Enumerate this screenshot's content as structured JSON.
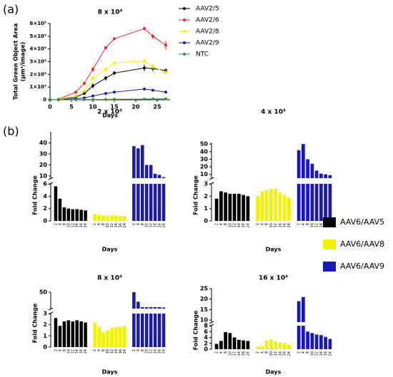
{
  "labels": [
    "(a)",
    "(b)"
  ],
  "chart_data": [
    {
      "type": "line",
      "title": "8 x 10⁴",
      "xlabel": "Days",
      "ylabel": [
        "Total Green Object Area",
        "(µm²/image)"
      ],
      "x": [
        0,
        2,
        6,
        8,
        10,
        13,
        15,
        22,
        24,
        27
      ],
      "xlim": [
        0,
        28
      ],
      "xticks": [
        0,
        5,
        10,
        15,
        20,
        25
      ],
      "ylim": [
        0,
        600000
      ],
      "yticks": [
        0,
        {
          "value": 100000,
          "label": "1×10⁵"
        },
        {
          "value": 200000,
          "label": "2×10⁵"
        },
        {
          "value": 300000,
          "label": "3×10⁵"
        },
        {
          "value": 400000,
          "label": "4×10⁵"
        },
        {
          "value": 500000,
          "label": "5×10⁵"
        },
        {
          "value": 600000,
          "label": "6×10⁵"
        }
      ],
      "series": [
        {
          "name": "AAV2/5",
          "color": "#000000",
          "values": [
            0,
            2000,
            20000,
            50000,
            110000,
            170000,
            210000,
            250000,
            245000,
            230000
          ],
          "errors": [
            0,
            1000,
            5000,
            10000,
            20000,
            20000,
            15000,
            25000,
            20000,
            15000
          ]
        },
        {
          "name": "AAV2/6",
          "color": "#e8262a",
          "values": [
            0,
            5000,
            60000,
            130000,
            240000,
            410000,
            480000,
            560000,
            500000,
            430000
          ],
          "errors": [
            0,
            1000,
            8000,
            10000,
            20000,
            10000,
            8000,
            15000,
            20000,
            35000
          ]
        },
        {
          "name": "AAV2/8",
          "color": "#f3f300",
          "values": [
            0,
            3000,
            30000,
            70000,
            170000,
            240000,
            290000,
            305000,
            260000,
            215000
          ],
          "errors": [
            0,
            1000,
            6000,
            10000,
            25000,
            20000,
            15000,
            30000,
            25000,
            20000
          ]
        },
        {
          "name": "AAV2/9",
          "color": "#1a1ab0",
          "values": [
            0,
            1000,
            8000,
            15000,
            30000,
            50000,
            60000,
            85000,
            75000,
            60000
          ],
          "errors": [
            0,
            500,
            2000,
            3000,
            4000,
            4000,
            4000,
            6000,
            5000,
            4000
          ]
        },
        {
          "name": "NTC",
          "color": "#2e9a2e",
          "values": [
            0,
            0,
            1000,
            2000,
            2000,
            3000,
            4000,
            5000,
            6000,
            8000
          ],
          "errors": [
            0,
            0,
            500,
            500,
            500,
            500,
            800,
            1000,
            1000,
            1500
          ]
        }
      ]
    },
    {
      "type": "broken_bar",
      "xlabel": "Days",
      "ylabel": "Fold Change",
      "categories": [
        "2",
        "4",
        "8",
        "10",
        "12",
        "14",
        "16",
        "24"
      ],
      "legend": [
        {
          "name": "AAV6/AAV5",
          "color": "#000000"
        },
        {
          "name": "AAV6/AAV8",
          "color": "#f3f300"
        },
        {
          "name": "AAV6/AAV9",
          "color": "#1a1ab0"
        }
      ],
      "panels": [
        {
          "title": "2 x 10⁴",
          "ylim": [
            0,
            6
          ],
          "yticks": [
            0,
            2,
            4,
            6
          ],
          "ylim_upper": [
            8,
            50
          ],
          "yticks_upper": [
            10,
            20,
            30,
            40
          ],
          "series": [
            [
              5.6,
              3.6,
              2.2,
              2.0,
              1.9,
              1.9,
              1.8,
              1.7
            ],
            [
              1.1,
              1.0,
              0.9,
              0.8,
              0.9,
              0.9,
              0.8,
              0.8
            ],
            [
              37,
              35,
              38,
              20,
              20,
              12,
              11,
              9
            ]
          ]
        },
        {
          "title": "4 x 10⁴",
          "ylim": [
            0,
            3
          ],
          "yticks": [
            0,
            1,
            2,
            3
          ],
          "ylim_upper": [
            5,
            52
          ],
          "yticks_upper": [
            10,
            20,
            30,
            40,
            50
          ],
          "series": [
            [
              1.8,
              2.4,
              2.3,
              2.2,
              2.2,
              2.2,
              2.1,
              2.0
            ],
            [
              2.0,
              2.4,
              2.5,
              2.6,
              2.6,
              2.3,
              2.1,
              1.9
            ],
            [
              42,
              50,
              30,
              24,
              15,
              11,
              10,
              9
            ]
          ]
        },
        {
          "title": "8 x 10⁴",
          "ylim": [
            0,
            3
          ],
          "yticks": [
            0,
            1,
            2,
            3
          ],
          "ylim_upper": [
            5,
            50
          ],
          "yticks_upper": [
            50
          ],
          "series": [
            [
              2.6,
              1.9,
              2.3,
              2.4,
              2.3,
              2.4,
              2.3,
              2.2
            ],
            [
              2.2,
              1.8,
              1.3,
              1.5,
              1.7,
              1.8,
              1.8,
              1.9
            ],
            [
              50,
              24,
              9,
              9,
              9,
              9,
              9,
              8
            ]
          ]
        },
        {
          "title": "16 x 10⁴",
          "ylim": [
            0,
            8
          ],
          "yticks": [
            0,
            2,
            4,
            6,
            8
          ],
          "ylim_upper": [
            9,
            25
          ],
          "yticks_upper": [
            10,
            15,
            20,
            25
          ],
          "series": [
            [
              1.8,
              2.8,
              5.8,
              5.5,
              4.0,
              3.2,
              3.0,
              2.8
            ],
            [
              0.8,
              1.0,
              3.0,
              3.3,
              2.7,
              2.3,
              2.0,
              1.5
            ],
            [
              19,
              21,
              6,
              5.5,
              5.0,
              4.8,
              4.2,
              3.5
            ]
          ]
        }
      ]
    }
  ]
}
